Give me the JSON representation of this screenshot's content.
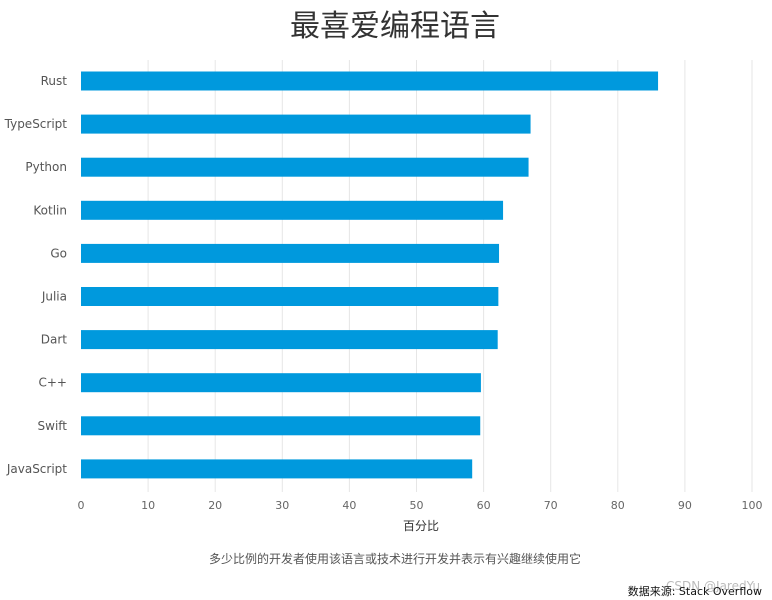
{
  "chart_data": {
    "type": "bar",
    "orientation": "horizontal",
    "title": "最喜爱编程语言",
    "categories": [
      "Rust",
      "TypeScript",
      "Python",
      "Kotlin",
      "Go",
      "Julia",
      "Dart",
      "C++",
      "Swift",
      "JavaScript"
    ],
    "values": [
      86.0,
      67.0,
      66.7,
      62.9,
      62.3,
      62.2,
      62.1,
      59.6,
      59.5,
      58.3
    ],
    "xlabel": "百分比",
    "ylabel": "",
    "xlim": [
      0,
      100
    ],
    "xticks": [
      "0",
      "10",
      "20",
      "30",
      "40",
      "50",
      "60",
      "70",
      "80",
      "90",
      "100"
    ],
    "grid": "vertical",
    "bar_color": "#0099dd",
    "footnote": "多少比例的开发者使用该语言或技术进行开发并表示有兴趣继续使用它",
    "source": "数据来源: Stack Overflow",
    "watermark": "CSDN @JaredYu"
  }
}
